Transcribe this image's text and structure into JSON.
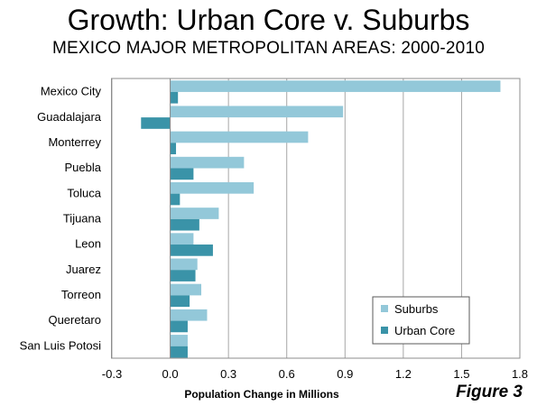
{
  "title": "Growth: Urban Core v. Suburbs",
  "subtitle": "MEXICO MAJOR METROPOLITAN AREAS: 2000-2010",
  "figure_label": "Figure 3",
  "chart_data": {
    "type": "bar",
    "orientation": "horizontal",
    "categories": [
      "Mexico City",
      "Guadalajara",
      "Monterrey",
      "Puebla",
      "Toluca",
      "Tijuana",
      "Leon",
      "Juarez",
      "Torreon",
      "Queretaro",
      "San Luis Potosi"
    ],
    "series": [
      {
        "name": "Suburbs",
        "color": "#93c8d9",
        "values": [
          1.7,
          0.89,
          0.71,
          0.38,
          0.43,
          0.25,
          0.12,
          0.14,
          0.16,
          0.19,
          0.09
        ]
      },
      {
        "name": "Urban Core",
        "color": "#3a93a8",
        "values": [
          0.04,
          -0.15,
          0.03,
          0.12,
          0.05,
          0.15,
          0.22,
          0.13,
          0.1,
          0.09,
          0.09
        ]
      }
    ],
    "xlabel": "Population Change in Millions",
    "xlim": [
      -0.3,
      1.8
    ],
    "xticks": [
      "-0.3",
      "0.0",
      "0.3",
      "0.6",
      "0.9",
      "1.2",
      "1.5",
      "1.8"
    ],
    "grid": "vertical",
    "legend_position": "bottom-right"
  }
}
